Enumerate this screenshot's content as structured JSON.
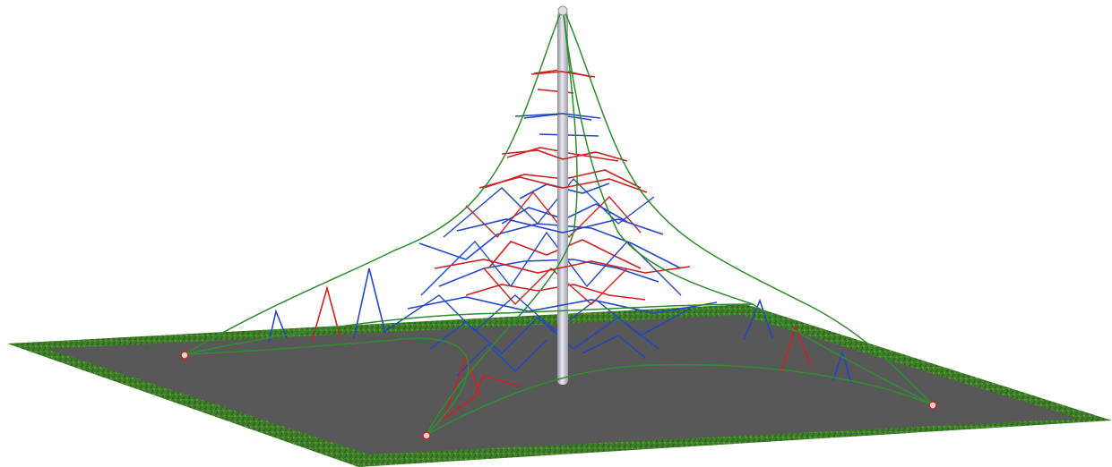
{
  "scene": {
    "colors": {
      "background": "#ffffff",
      "grass": "#3f7f2a",
      "grass_dark": "#2b5e1d",
      "pad": "#585858",
      "pole": "#c8c9d2",
      "pole_shade": "#8e8f9c",
      "perimeter_rope": "#2e8b2e",
      "blue_rope": "#2347c8",
      "red_rope": "#cc2222",
      "anchor": "#d8d8d8"
    },
    "icons": [
      "climbing-net-pyramid",
      "center-mast",
      "ground-anchor"
    ]
  }
}
